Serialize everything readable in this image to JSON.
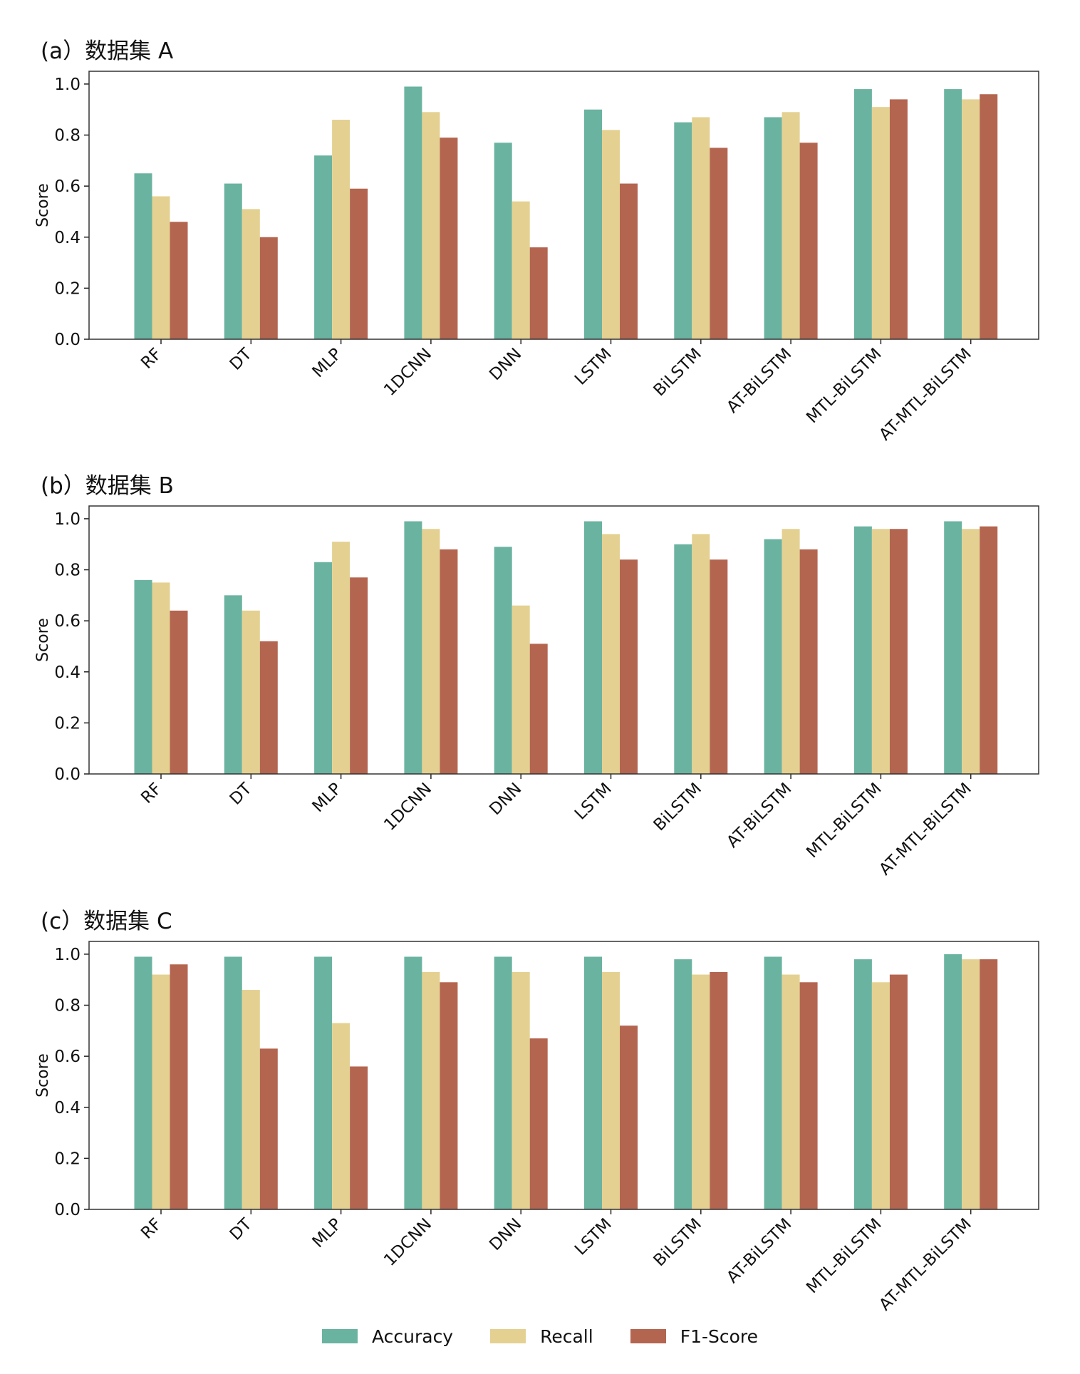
{
  "chart_data": [
    {
      "type": "bar",
      "title": "(a）数据集 A",
      "ylabel": "Score",
      "ylim": [
        0,
        1.05
      ],
      "yticks": [
        "0.0",
        "0.2",
        "0.4",
        "0.6",
        "0.8",
        "1.0"
      ],
      "categories": [
        "RF",
        "DT",
        "MLP",
        "1DCNN",
        "DNN",
        "LSTM",
        "BiLSTM",
        "AT-BiLSTM",
        "MTL-BiLSTM",
        "AT-MTL-BiLSTM"
      ],
      "series": [
        {
          "name": "Accuracy",
          "values": [
            0.65,
            0.61,
            0.72,
            0.99,
            0.77,
            0.9,
            0.85,
            0.87,
            0.98,
            0.98
          ]
        },
        {
          "name": "Recall",
          "values": [
            0.56,
            0.51,
            0.86,
            0.89,
            0.54,
            0.82,
            0.87,
            0.89,
            0.91,
            0.94
          ]
        },
        {
          "name": "F1-Score",
          "values": [
            0.46,
            0.4,
            0.59,
            0.79,
            0.36,
            0.61,
            0.75,
            0.77,
            0.94,
            0.96
          ]
        }
      ]
    },
    {
      "type": "bar",
      "title": "(b）数据集 B",
      "ylabel": "Score",
      "ylim": [
        0,
        1.05
      ],
      "yticks": [
        "0.0",
        "0.2",
        "0.4",
        "0.6",
        "0.8",
        "1.0"
      ],
      "categories": [
        "RF",
        "DT",
        "MLP",
        "1DCNN",
        "DNN",
        "LSTM",
        "BiLSTM",
        "AT-BiLSTM",
        "MTL-BiLSTM",
        "AT-MTL-BiLSTM"
      ],
      "series": [
        {
          "name": "Accuracy",
          "values": [
            0.76,
            0.7,
            0.83,
            0.99,
            0.89,
            0.99,
            0.9,
            0.92,
            0.97,
            0.99
          ]
        },
        {
          "name": "Recall",
          "values": [
            0.75,
            0.64,
            0.91,
            0.96,
            0.66,
            0.94,
            0.94,
            0.96,
            0.96,
            0.96
          ]
        },
        {
          "name": "F1-Score",
          "values": [
            0.64,
            0.52,
            0.77,
            0.88,
            0.51,
            0.84,
            0.84,
            0.88,
            0.96,
            0.97
          ]
        }
      ]
    },
    {
      "type": "bar",
      "title": "(c）数据集 C",
      "ylabel": "Score",
      "ylim": [
        0,
        1.05
      ],
      "yticks": [
        "0.0",
        "0.2",
        "0.4",
        "0.6",
        "0.8",
        "1.0"
      ],
      "categories": [
        "RF",
        "DT",
        "MLP",
        "1DCNN",
        "DNN",
        "LSTM",
        "BiLSTM",
        "AT-BiLSTM",
        "MTL-BiLSTM",
        "AT-MTL-BiLSTM"
      ],
      "series": [
        {
          "name": "Accuracy",
          "values": [
            0.99,
            0.99,
            0.99,
            0.99,
            0.99,
            0.99,
            0.98,
            0.99,
            0.98,
            1.0
          ]
        },
        {
          "name": "Recall",
          "values": [
            0.92,
            0.86,
            0.73,
            0.93,
            0.93,
            0.93,
            0.92,
            0.92,
            0.89,
            0.98
          ]
        },
        {
          "name": "F1-Score",
          "values": [
            0.96,
            0.63,
            0.56,
            0.89,
            0.67,
            0.72,
            0.93,
            0.89,
            0.92,
            0.98
          ]
        }
      ]
    }
  ],
  "legend": {
    "items": [
      {
        "label": "Accuracy",
        "color": "#6ab3a0"
      },
      {
        "label": "Recall",
        "color": "#e4d191"
      },
      {
        "label": "F1-Score",
        "color": "#b4654f"
      }
    ]
  }
}
